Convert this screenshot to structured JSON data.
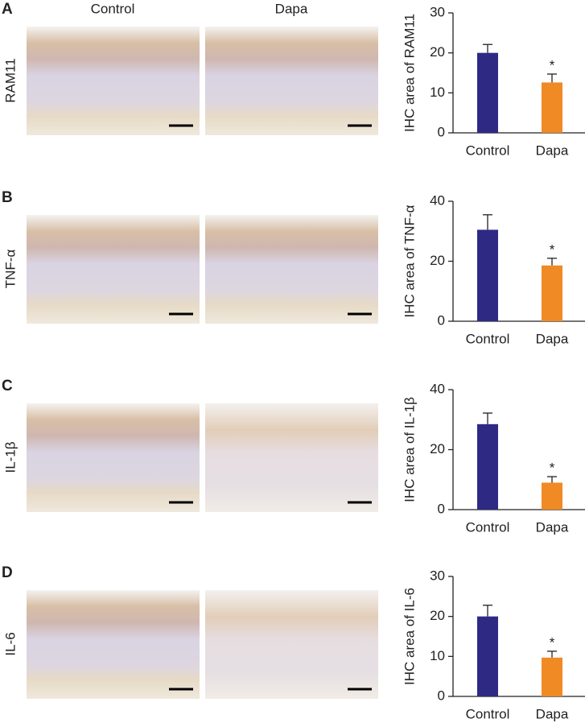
{
  "image_columns": [
    "Control",
    "Dapa"
  ],
  "chart_data": [
    {
      "type": "bar",
      "panel": "A",
      "row_label": "RAM11",
      "ylabel": "IHC area of RAM11",
      "categories": [
        "Control",
        "Dapa"
      ],
      "values": [
        20,
        12.6
      ],
      "errors": [
        2.1,
        2.1
      ],
      "significance": [
        null,
        "*"
      ],
      "colors": [
        "#2e2a84",
        "#f08a24"
      ],
      "ylim": [
        0,
        30
      ],
      "yticks": [
        0,
        10,
        20,
        30
      ]
    },
    {
      "type": "bar",
      "panel": "B",
      "row_label": "TNF-α",
      "ylabel": "IHC area of TNF-α",
      "categories": [
        "Control",
        "Dapa"
      ],
      "values": [
        30.5,
        18.6
      ],
      "errors": [
        5,
        2.4
      ],
      "significance": [
        null,
        "*"
      ],
      "colors": [
        "#2e2a84",
        "#f08a24"
      ],
      "ylim": [
        0,
        40
      ],
      "yticks": [
        0,
        20,
        40
      ]
    },
    {
      "type": "bar",
      "panel": "C",
      "row_label": "IL-1β",
      "ylabel": "IHC area of IL-1β",
      "categories": [
        "Control",
        "Dapa"
      ],
      "values": [
        28.5,
        9
      ],
      "errors": [
        3.7,
        2
      ],
      "significance": [
        null,
        "*"
      ],
      "colors": [
        "#2e2a84",
        "#f08a24"
      ],
      "ylim": [
        0,
        40
      ],
      "yticks": [
        0,
        20,
        40
      ]
    },
    {
      "type": "bar",
      "panel": "D",
      "row_label": "IL-6",
      "ylabel": "IHC area of IL-6",
      "categories": [
        "Control",
        "Dapa"
      ],
      "values": [
        20,
        9.7
      ],
      "errors": [
        2.8,
        1.6
      ],
      "significance": [
        null,
        "*"
      ],
      "colors": [
        "#2e2a84",
        "#f08a24"
      ],
      "ylim": [
        0,
        30
      ],
      "yticks": [
        0,
        10,
        20,
        30
      ]
    }
  ]
}
